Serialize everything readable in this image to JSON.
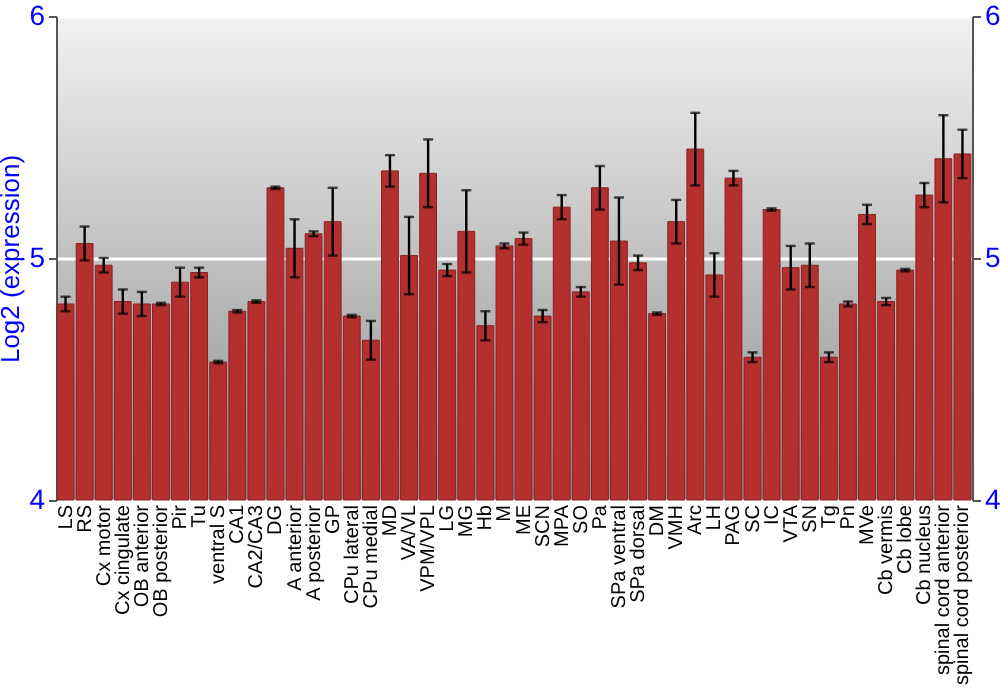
{
  "chart_data": {
    "type": "bar",
    "ylabel": "Log2 (expression)",
    "categories": [
      "LS",
      "RS",
      "Cx motor",
      "Cx cingulate",
      "OB anterior",
      "OB posterior",
      "Pir",
      "Tu",
      "ventral S",
      "CA1",
      "CA2/CA3",
      "DG",
      "A anterior",
      "A posterior",
      "GP",
      "CPu lateral",
      "CPu medial",
      "MD",
      "VA/VL",
      "VPM/VPL",
      "LG",
      "MG",
      "Hb",
      "M",
      "ME",
      "SCN",
      "MPA",
      "SO",
      "Pa",
      "SPa ventral",
      "SPa dorsal",
      "DM",
      "VMH",
      "Arc",
      "LH",
      "PAG",
      "SC",
      "IC",
      "VTA",
      "SN",
      "Tg",
      "Pn",
      "MVe",
      "Cb vermis",
      "Cb lobe",
      "Cb nucleus",
      "spinal cord anterior",
      "spinal cord posterior"
    ],
    "series": [
      {
        "color": "#b3302f",
        "values": [
          4.81,
          5.06,
          4.97,
          4.82,
          4.81,
          4.81,
          4.9,
          4.94,
          4.57,
          4.78,
          4.82,
          5.29,
          5.04,
          5.1,
          5.15,
          4.76,
          4.66,
          5.36,
          5.01,
          5.35,
          4.95,
          5.11,
          4.72,
          5.05,
          5.08,
          4.76,
          5.21,
          4.86,
          5.29,
          5.07,
          4.98,
          4.77,
          5.15,
          5.45,
          4.93,
          5.33,
          4.59,
          5.2,
          4.96,
          4.97,
          4.59,
          4.81,
          5.18,
          4.82,
          4.95,
          5.26,
          5.41,
          5.43
        ],
        "errors": [
          0.03,
          0.07,
          0.03,
          0.05,
          0.05,
          0.005,
          0.06,
          0.02,
          0.005,
          0.005,
          0.005,
          0.005,
          0.12,
          0.01,
          0.14,
          0.005,
          0.08,
          0.065,
          0.16,
          0.14,
          0.025,
          0.17,
          0.06,
          0.01,
          0.025,
          0.025,
          0.05,
          0.02,
          0.09,
          0.18,
          0.03,
          0.005,
          0.09,
          0.15,
          0.09,
          0.03,
          0.02,
          0.005,
          0.09,
          0.09,
          0.02,
          0.01,
          0.04,
          0.015,
          0.005,
          0.05,
          0.18,
          0.1
        ]
      }
    ],
    "ylim": [
      4,
      6
    ],
    "yticks": [
      4,
      5,
      6
    ],
    "y2lim": [
      4,
      6
    ],
    "y2ticks": [
      4,
      5,
      6
    ],
    "grid": "y"
  }
}
